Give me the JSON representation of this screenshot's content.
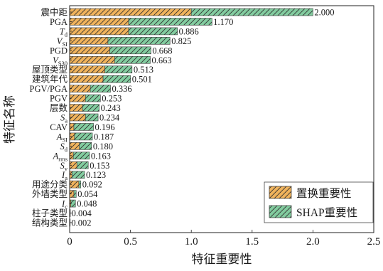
{
  "chart_data": {
    "type": "bar",
    "orientation": "horizontal",
    "stacked": true,
    "xlabel": "特征重要性",
    "ylabel": "特征名称",
    "xlim": [
      0,
      2.5
    ],
    "xticks": [
      0,
      0.5,
      1.0,
      1.5,
      2.0,
      2.5
    ],
    "xtick_labels": [
      "0",
      "0.5",
      "1.0",
      "1.5",
      "2.0",
      "2.5"
    ],
    "grid": false,
    "legend": "lower-right",
    "categories": [
      {
        "text": "震中距"
      },
      {
        "text": "PGA"
      },
      {
        "text": "T",
        "sub": "d"
      },
      {
        "text": "V",
        "sub": "SI"
      },
      {
        "text": "PGD"
      },
      {
        "text": "V",
        "sub": "S30"
      },
      {
        "text": "屋顶类型"
      },
      {
        "text": "建筑年代"
      },
      {
        "text": "PGV/PGA"
      },
      {
        "text": "PGV"
      },
      {
        "text": "层数"
      },
      {
        "text": "S",
        "sub": "a"
      },
      {
        "text": "CAV"
      },
      {
        "text": "A",
        "sub": "SI"
      },
      {
        "text": "S",
        "sub": "d"
      },
      {
        "text": "A",
        "sub": "rms"
      },
      {
        "text": "S",
        "sub": "v"
      },
      {
        "text": "I",
        "sub": "a"
      },
      {
        "text": "用途分类"
      },
      {
        "text": "外墙类型"
      },
      {
        "text": "I",
        "sub": "c"
      },
      {
        "text": "柱子类型"
      },
      {
        "text": "结构类型"
      }
    ],
    "series": [
      {
        "name": "置换重要性",
        "color": "#f0b35c",
        "values": [
          1.0,
          0.485,
          0.485,
          0.315,
          0.33,
          0.37,
          0.29,
          0.275,
          0.17,
          0.13,
          0.105,
          0.13,
          0.035,
          0.04,
          0.08,
          0.03,
          0.06,
          0.02,
          0.075,
          0.035,
          0.01,
          0.002,
          0.001
        ]
      },
      {
        "name": "SHAP重要性",
        "color": "#82cc9f",
        "values": [
          1.0,
          0.685,
          0.401,
          0.51,
          0.338,
          0.293,
          0.223,
          0.226,
          0.166,
          0.123,
          0.138,
          0.104,
          0.161,
          0.147,
          0.1,
          0.133,
          0.093,
          0.103,
          0.017,
          0.019,
          0.038,
          0.002,
          0.001
        ]
      }
    ],
    "data_labels": [
      "2.000",
      "1.170",
      "0.886",
      "0.825",
      "0.668",
      "0.663",
      "0.513",
      "0.501",
      "0.336",
      "0.253",
      "0.243",
      "0.234",
      "0.196",
      "0.187",
      "0.180",
      "0.163",
      "0.153",
      "0.123",
      "0.092",
      "0.054",
      "0.048",
      "0.004",
      "0.002"
    ]
  }
}
